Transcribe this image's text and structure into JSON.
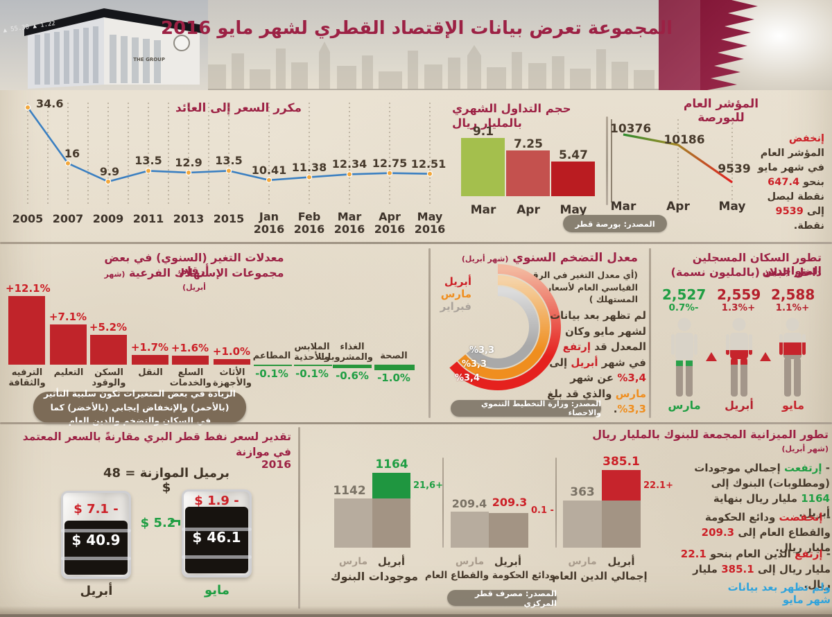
{
  "header": {
    "title": "المجموعة تعرض بيانات الإقتصاد القطري لشهر مايو 2016",
    "building_name": "THE GROUP",
    "building_ticker": "1.22 ▲ 55.30 ▲"
  },
  "sources": {
    "exchange": "المصدر: بورصة قطر",
    "planning": "المصدر: وزارة التخطيط التنموي والاحصاء",
    "central_bank": "المصدر: مصرف قطر المركزي"
  },
  "chart_data": [
    {
      "type": "line",
      "title": "مكرر السعر إلى العائد",
      "x": [
        "2005",
        "2007",
        "2009",
        "2011",
        "2013",
        "2015",
        "Jan 2016",
        "Feb 2016",
        "Mar 2016",
        "Apr 2016",
        "May 2016"
      ],
      "values": [
        34.6,
        16,
        9.9,
        13.5,
        12.9,
        13.5,
        10.41,
        11.38,
        12.34,
        12.75,
        12.51
      ],
      "value_labels": [
        "34.6",
        "16",
        "9.9",
        "13.5",
        "12.9",
        "13.5",
        "10.41",
        "11.38",
        "12.34",
        "12.75",
        "12.51"
      ],
      "line_color": "#3a7fc1",
      "marker_color": "#f2a73b",
      "grid": "dotted-vertical"
    },
    {
      "type": "bar",
      "title": "حجم التداول الشهري بالمليار ريال",
      "categories": [
        "Mar",
        "Apr",
        "May"
      ],
      "values": [
        9.1,
        7.25,
        5.47
      ],
      "value_labels": [
        "9.1",
        "7.25",
        "5.47"
      ],
      "bar_colors": [
        "#a4bf4d",
        "#c4514e",
        "#ba1c21"
      ]
    },
    {
      "type": "line",
      "title": "المؤشر العام للبورصة",
      "categories": [
        "Mar",
        "Apr",
        "May"
      ],
      "values": [
        10376,
        10186,
        9539
      ],
      "value_labels": [
        "10376",
        "10186",
        "9539"
      ],
      "note": [
        {
          "t": "إنخفض",
          "c": "red"
        },
        {
          "t": " المؤشر العام في شهر مايو بنحو "
        },
        {
          "t": "647.4",
          "c": "red"
        },
        {
          "t": " نقطة ليصل إلى "
        },
        {
          "t": "9539",
          "c": "red"
        },
        {
          "t": " نقطة."
        }
      ]
    },
    {
      "type": "bar",
      "title_line1": "معدلات التغير (السنوي) في بعض أرقام",
      "title_line2": "مجموعات الإستهلاك الفرعية",
      "month_tag": "(شهر أبريل)",
      "categories": [
        "الترفيه والثقافة",
        "التعليم",
        "السكن والوقود",
        "النقل",
        "السلع والخدمات",
        "الأثاث والأجهزة",
        "المطاعم",
        "الملابس والأحذية",
        "الغذاء والمشروبات",
        "الصحة"
      ],
      "values": [
        12.1,
        7.1,
        5.2,
        1.7,
        1.6,
        1.0,
        -0.1,
        -0.1,
        -0.6,
        -1.0
      ],
      "value_labels": [
        "+12.1%",
        "+7.1%",
        "+5.2%",
        "+1.7%",
        "+1.6%",
        "+1.0%",
        "-0.1%",
        "-0.1%",
        "-0.6%",
        "-1.0%"
      ],
      "positive_color": "#c0242a",
      "negative_color": "#27963c",
      "footnote": "الزيادة في بعض المتغيرات تكون سلبية التأثير (بالأحمر) والإنخفاض إيجابي (بالأخضر) كما في السكان والتضخم والدين العام"
    },
    {
      "type": "donut",
      "title": "معدل التضخم السنوي",
      "month_tag": "(شهر أبريل)",
      "subtitle": "(أي معدل التغير في الرقم القياسي العام لأسعار المستهلك )",
      "legend": [
        {
          "label": "أبريل",
          "color": "#e5211e"
        },
        {
          "label": "مارس",
          "color": "#ef8e1f"
        },
        {
          "label": "فبراير",
          "color": "#a9a29a"
        }
      ],
      "values": [
        3.4,
        3.3,
        3.3
      ],
      "value_labels": [
        "%3,4",
        "%3,3",
        "%3,3"
      ],
      "note": [
        {
          "t": "لم تظهر بعد بيانات لشهر مايو وكان المعدل قد "
        },
        {
          "t": "إرتفع",
          "c": "red"
        },
        {
          "t": " في شهر "
        },
        {
          "t": "أبريل",
          "c": "red"
        },
        {
          "t": " إلى "
        },
        {
          "t": "%3,4",
          "c": "red",
          "ltr": true
        },
        {
          "t": " عن شهر "
        },
        {
          "t": "مارس",
          "c": "orange"
        },
        {
          "t": " والذي قد بلغ "
        },
        {
          "t": "%3,3",
          "c": "orange",
          "ltr": true
        },
        {
          "t": "."
        }
      ]
    },
    {
      "type": "pictogram",
      "title_line1": "تطور السكان المسجلين المتواجدين",
      "title_line2": "داخل البلاد (بالمليون نسمة)",
      "categories": [
        "مارس",
        "أبريل",
        "مايو"
      ],
      "values": [
        "2,527",
        "2,559",
        "2,588"
      ],
      "changes": [
        "0.7%-",
        "1.3%+",
        "1.1%+"
      ]
    },
    {
      "type": "pictogram",
      "title_line1": "تقدير لسعر نفط قطر البري مقارنةً بالسعر المعتمد",
      "title_line2": "في موازنة 2016",
      "budget_label": "برميل الموازنة = 48 $",
      "months": [
        "أبريل",
        "مايو"
      ],
      "prices": [
        "$ 40.9",
        "$ 46.1"
      ],
      "diffs": [
        "$ 7.1 -",
        "$ 1.9 -"
      ],
      "gap": "$ 5.2"
    },
    {
      "type": "bar",
      "title": "تطور الميزانية المجمعة للبنوك بالمليار ريال",
      "month_tag": "(شهر أبريل)",
      "month_labels": [
        "مارس",
        "أبريل"
      ],
      "groups": [
        {
          "name": "موجودات البنوك",
          "mar": "1142",
          "apr": "1164",
          "change": "21,6+"
        },
        {
          "name": "ودائع الحكومة والقطاع العام",
          "mar": "209.4",
          "apr": "209.3",
          "change": "0.1 -"
        },
        {
          "name": "إجمالي الدين العام",
          "mar": "363",
          "apr": "385.1",
          "change": "22.1+"
        }
      ],
      "notes": [
        [
          {
            "t": "- "
          },
          {
            "t": "إرتفعت",
            "c": "green"
          },
          {
            "t": " إجمالي موجودات (ومطلوبات) البنوك إلى "
          },
          {
            "t": "1164",
            "c": "green"
          },
          {
            "t": " مليار ريال بنهاية أبريل."
          }
        ],
        [
          {
            "t": "- "
          },
          {
            "t": "إنخفضت",
            "c": "red"
          },
          {
            "t": " ودائع الحكومة والقطاع العام إلى "
          },
          {
            "t": "209.3",
            "c": "red"
          },
          {
            "t": " مليار ريال."
          }
        ],
        [
          {
            "t": "- "
          },
          {
            "t": "إرتفع",
            "c": "red"
          },
          {
            "t": " الدين العام بنحو "
          },
          {
            "t": "22.1",
            "c": "red"
          },
          {
            "t": " مليار ريال إلى "
          },
          {
            "t": "385.1",
            "c": "red"
          },
          {
            "t": " مليار ريال."
          }
        ],
        [
          {
            "t": "ولم تظهر بعد بيانات شهر مايو",
            "c": "blue"
          }
        ]
      ]
    }
  ]
}
